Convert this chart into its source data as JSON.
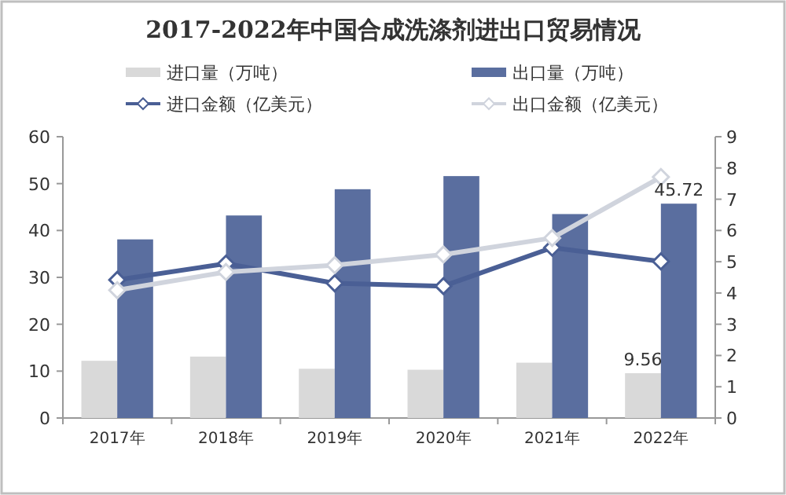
{
  "chart_data": {
    "type": "bar",
    "title": "2017-2022年中国合成洗涤剂进出口贸易情况",
    "categories": [
      "2017年",
      "2018年",
      "2019年",
      "2020年",
      "2021年",
      "2022年"
    ],
    "series": [
      {
        "name": "进口量（万吨）",
        "color": "#d9d9d9",
        "values": [
          12.2,
          13.1,
          10.5,
          10.3,
          11.8,
          9.56
        ],
        "value_labels": [
          null,
          null,
          null,
          null,
          null,
          "9.56"
        ]
      },
      {
        "name": "出口量（万吨）",
        "color": "#5a6e9f",
        "values": [
          38.1,
          43.2,
          48.8,
          51.6,
          43.5,
          45.72
        ],
        "value_labels": [
          null,
          null,
          null,
          null,
          null,
          "45.72"
        ]
      },
      {
        "name": "进口金额（亿美元）",
        "type": "line",
        "axis": "y2",
        "color": "#4a5f95",
        "values": [
          4.42,
          4.94,
          4.31,
          4.22,
          5.45,
          5.01
        ]
      },
      {
        "name": "出口金额（亿美元）",
        "type": "line",
        "axis": "y2",
        "color": "#d0d4dd",
        "values": [
          4.09,
          4.67,
          4.89,
          5.23,
          5.76,
          7.71
        ]
      }
    ],
    "ylim": [
      0,
      60
    ],
    "yticks": [
      0,
      10,
      20,
      30,
      40,
      50,
      60
    ],
    "y2lim": [
      0,
      9
    ],
    "y2ticks": [
      0,
      1,
      2,
      3,
      4,
      5,
      6,
      7,
      8,
      9
    ],
    "marker": "diamond",
    "grid": false,
    "legend": "top"
  }
}
